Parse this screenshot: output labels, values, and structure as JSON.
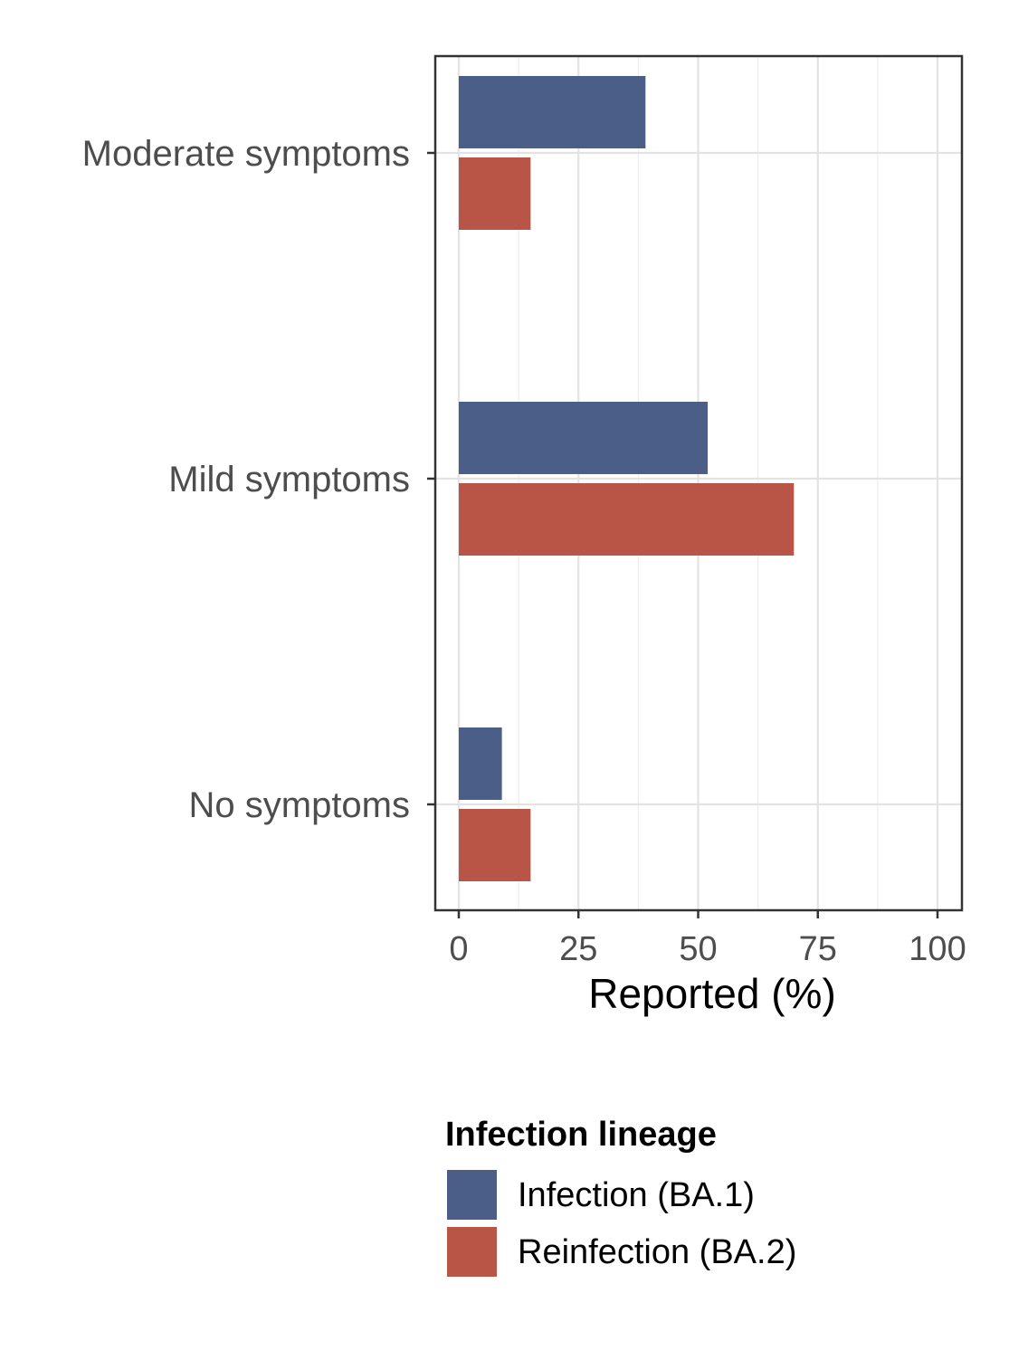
{
  "chart_data": {
    "type": "bar",
    "orientation": "horizontal",
    "categories": [
      "Moderate symptoms",
      "Mild symptoms",
      "No symptoms"
    ],
    "series": [
      {
        "name": "Infection (BA.1)",
        "color": "#4a5e87",
        "values": [
          39,
          52,
          9
        ]
      },
      {
        "name": "Reinfection (BA.2)",
        "color": "#b85546",
        "values": [
          15,
          70,
          15
        ]
      }
    ],
    "xlabel": "Reported (%)",
    "ylabel": "",
    "xlim": [
      0,
      100
    ],
    "xticks": [
      "0",
      "25",
      "50",
      "75",
      "100"
    ],
    "grid": true,
    "legend": {
      "title": "Infection lineage",
      "placement": "bottom"
    }
  }
}
